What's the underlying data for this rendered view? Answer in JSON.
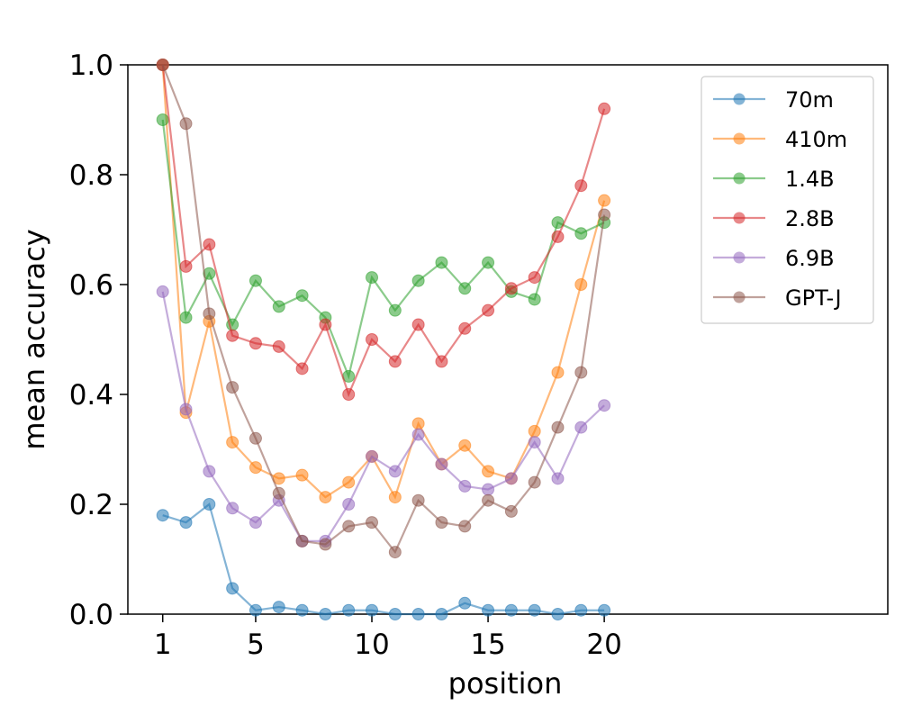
{
  "chart_data": {
    "type": "line",
    "xlabel": "position",
    "ylabel": "mean accuracy",
    "xlim": [
      -0.5,
      32.2
    ],
    "ylim": [
      0.0,
      1.0
    ],
    "x_ticks": [
      1,
      5,
      10,
      15,
      20
    ],
    "y_ticks": [
      0.0,
      0.2,
      0.4,
      0.6,
      0.8,
      1.0
    ],
    "y_tick_labels": [
      "0.0",
      "0.2",
      "0.4",
      "0.6",
      "0.8",
      "1.0"
    ],
    "grid": false,
    "legend": "top-right",
    "x": [
      1,
      2,
      3,
      4,
      5,
      6,
      7,
      8,
      9,
      10,
      11,
      12,
      13,
      14,
      15,
      16,
      17,
      18,
      19,
      20
    ],
    "series": [
      {
        "name": "70m",
        "color": "#1f77b4",
        "values": [
          0.18,
          0.167,
          0.2,
          0.047,
          0.007,
          0.013,
          0.007,
          0.0,
          0.007,
          0.007,
          0.0,
          0.0,
          0.0,
          0.02,
          0.007,
          0.007,
          0.007,
          0.0,
          0.007,
          0.007
        ]
      },
      {
        "name": "410m",
        "color": "#ff7f0e",
        "values": [
          1.0,
          0.367,
          0.533,
          0.313,
          0.267,
          0.247,
          0.253,
          0.213,
          0.24,
          0.287,
          0.213,
          0.347,
          0.273,
          0.307,
          0.26,
          0.247,
          0.333,
          0.44,
          0.6,
          0.753
        ]
      },
      {
        "name": "1.4B",
        "color": "#2ca02c",
        "values": [
          0.9,
          0.54,
          0.62,
          0.527,
          0.607,
          0.56,
          0.58,
          0.54,
          0.433,
          0.613,
          0.553,
          0.607,
          0.64,
          0.593,
          0.64,
          0.587,
          0.573,
          0.713,
          0.693,
          0.713
        ]
      },
      {
        "name": "2.8B",
        "color": "#d62728",
        "values": [
          1.0,
          0.633,
          0.673,
          0.507,
          0.493,
          0.487,
          0.447,
          0.527,
          0.4,
          0.5,
          0.46,
          0.527,
          0.46,
          0.52,
          0.553,
          0.593,
          0.613,
          0.687,
          0.78,
          0.92
        ]
      },
      {
        "name": "6.9B",
        "color": "#9467bd",
        "values": [
          0.587,
          0.373,
          0.26,
          0.193,
          0.167,
          0.207,
          0.133,
          0.133,
          0.2,
          0.287,
          0.26,
          0.327,
          0.273,
          0.233,
          0.227,
          0.247,
          0.313,
          0.247,
          0.34,
          0.38
        ]
      },
      {
        "name": "GPT-J",
        "color": "#8c564b",
        "values": [
          1.0,
          0.893,
          0.547,
          0.413,
          0.32,
          0.22,
          0.133,
          0.127,
          0.16,
          0.167,
          0.113,
          0.207,
          0.167,
          0.16,
          0.207,
          0.187,
          0.24,
          0.34,
          0.44,
          0.727
        ]
      }
    ]
  }
}
